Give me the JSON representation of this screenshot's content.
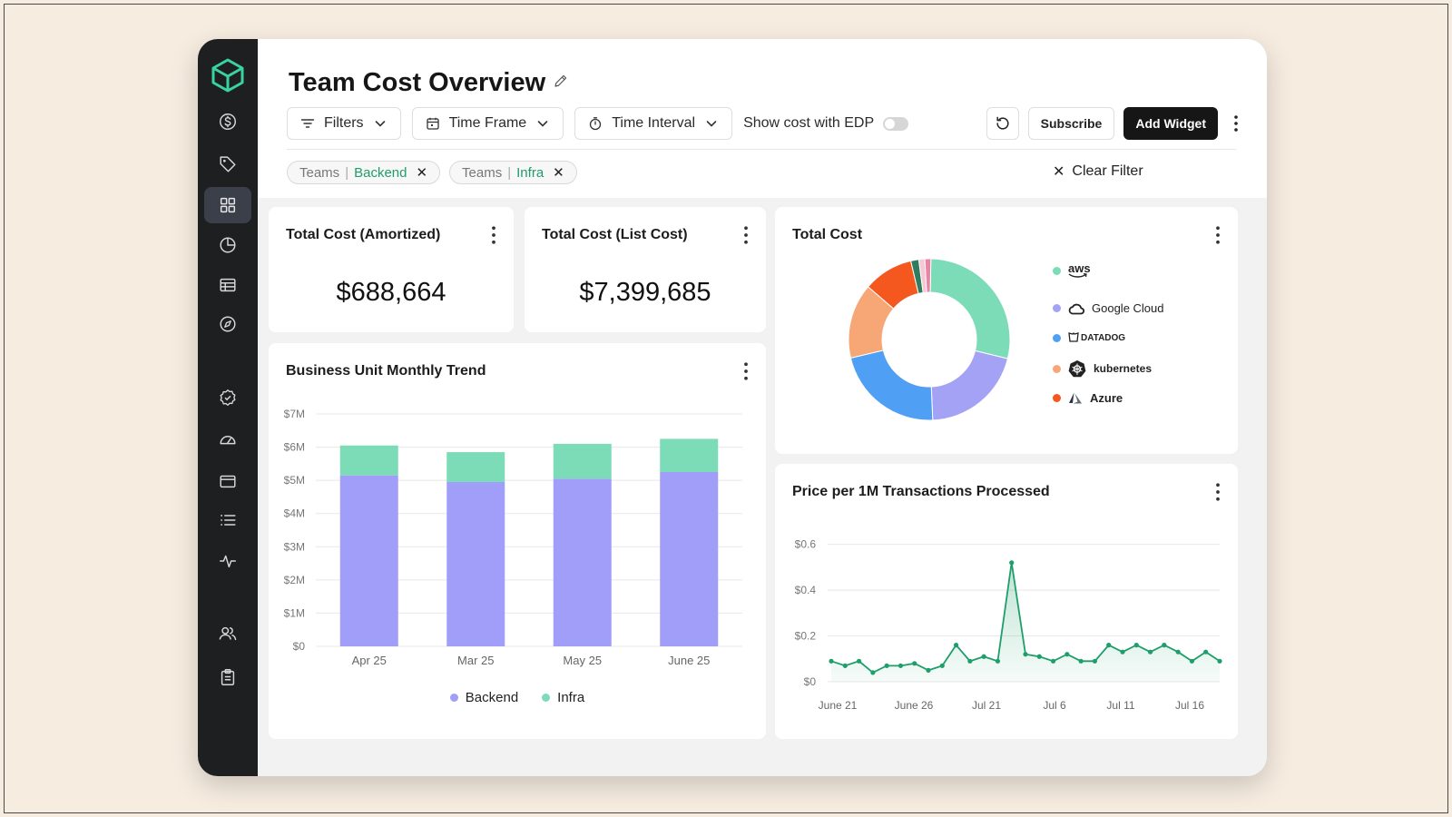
{
  "page": {
    "title": "Team Cost Overview"
  },
  "toolbar": {
    "filters_label": "Filters",
    "time_frame_label": "Time Frame",
    "time_interval_label": "Time Interval",
    "edp_label": "Show cost with EDP",
    "edp_enabled": false,
    "subscribe_label": "Subscribe",
    "add_widget_label": "Add Widget"
  },
  "filter_chips": [
    {
      "key": "Teams",
      "value": "Backend"
    },
    {
      "key": "Teams",
      "value": "Infra"
    }
  ],
  "clear_filter_label": "Clear Filter",
  "sidebar": {
    "items": [
      {
        "icon": "dollar-icon"
      },
      {
        "icon": "tag-icon"
      },
      {
        "icon": "dashboard-grid-icon",
        "active": true
      },
      {
        "icon": "pie-chart-icon"
      },
      {
        "icon": "table-icon"
      },
      {
        "icon": "compass-icon"
      },
      {
        "icon": "verified-badge-icon"
      },
      {
        "icon": "speedometer-icon"
      },
      {
        "icon": "wallet-icon"
      },
      {
        "icon": "list-icon"
      },
      {
        "icon": "activity-icon"
      },
      {
        "icon": "users-icon"
      },
      {
        "icon": "clipboard-icon"
      }
    ]
  },
  "widgets": {
    "amortized": {
      "title": "Total Cost (Amortized)",
      "value": "$688,664"
    },
    "list_cost": {
      "title": "Total Cost (List Cost)",
      "value": "$7,399,685"
    },
    "trend": {
      "title": "Business Unit Monthly Trend"
    },
    "total_cost": {
      "title": "Total Cost"
    },
    "price_per_tx": {
      "title": "Price per 1M Transactions Processed"
    }
  },
  "colors": {
    "backend": "#a09ef8",
    "infra": "#7ddcb8",
    "aws": "#7ddcb8",
    "google_cloud": "#a4a2f5",
    "datadog": "#4f9ff5",
    "kubernetes": "#f7a676",
    "azure": "#f4581e",
    "line": "#1e9e6a"
  },
  "chart_data": [
    {
      "type": "bar",
      "stacked": true,
      "title": "Business Unit Monthly Trend",
      "categories": [
        "Apr 25",
        "Mar 25",
        "May 25",
        "June 25"
      ],
      "series": [
        {
          "name": "Backend",
          "values": [
            5.15,
            4.95,
            5.05,
            5.25
          ]
        },
        {
          "name": "Infra",
          "values": [
            0.9,
            0.9,
            1.05,
            1.0
          ]
        }
      ],
      "ylim": [
        0,
        7
      ],
      "yticks": [
        "$0",
        "$1M",
        "$2M",
        "$3M",
        "$4M",
        "$5M",
        "$6M",
        "$7M"
      ],
      "legend": "bottom"
    },
    {
      "type": "pie",
      "donut": true,
      "title": "Total Cost",
      "labels": [
        "aws",
        "Google Cloud",
        "DATADOG",
        "kubernetes",
        "Azure",
        "",
        "",
        ""
      ],
      "values": [
        28.5,
        20.5,
        22,
        15,
        10,
        1.6,
        1.2,
        1.2
      ],
      "legend": "right"
    },
    {
      "type": "area",
      "title": "Price per 1M Transactions Processed",
      "x_ticks": [
        "June 21",
        "June 26",
        "Jul 21",
        "Jul 6",
        "Jul 11",
        "Jul 16"
      ],
      "values": [
        0.09,
        0.07,
        0.09,
        0.04,
        0.07,
        0.07,
        0.08,
        0.05,
        0.07,
        0.16,
        0.09,
        0.11,
        0.09,
        0.52,
        0.12,
        0.11,
        0.09,
        0.12,
        0.09,
        0.09,
        0.16,
        0.13,
        0.16,
        0.13,
        0.16,
        0.13,
        0.09,
        0.13,
        0.09
      ],
      "ylim": [
        0,
        0.65
      ],
      "yticks": [
        "$0",
        "$0.2",
        "$0.4",
        "$0.6"
      ]
    }
  ]
}
